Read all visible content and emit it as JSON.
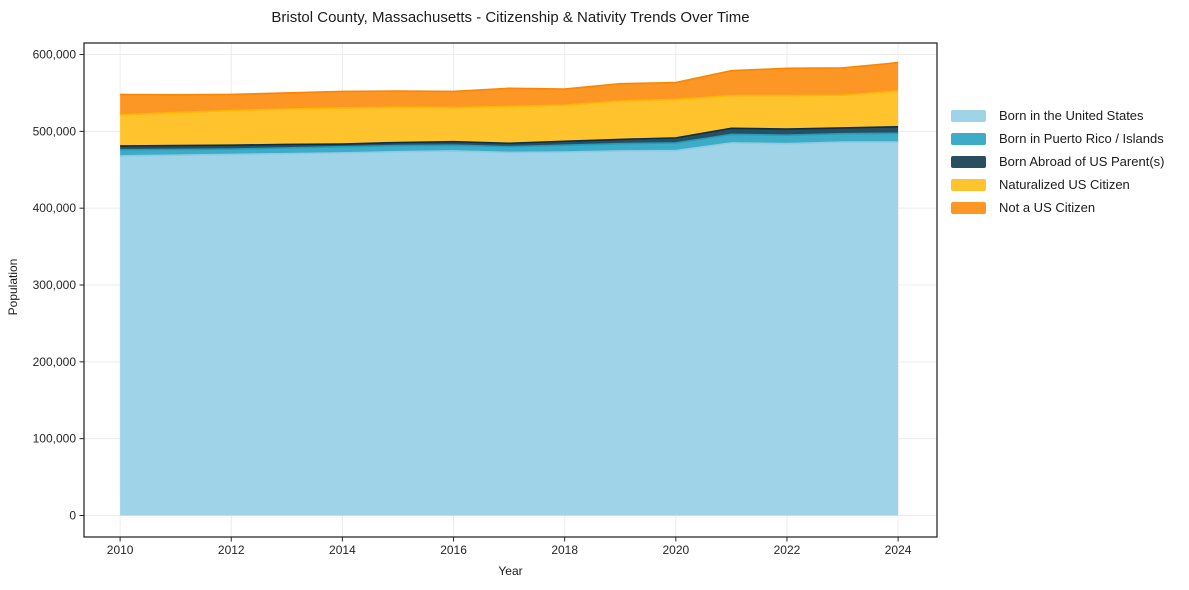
{
  "figure": {
    "title": "Bristol County, Massachusetts - Citizenship & Nativity Trends Over Time",
    "xlabel": "Year",
    "ylabel": "Population"
  },
  "chart_data": {
    "type": "area",
    "stacked": true,
    "title": "Bristol County, Massachusetts - Citizenship & Nativity Trends Over Time",
    "xlabel": "Year",
    "ylabel": "Population",
    "grid": true,
    "legend_position": "right-outside",
    "x": [
      2010,
      2011,
      2012,
      2013,
      2014,
      2015,
      2016,
      2017,
      2018,
      2019,
      2020,
      2021,
      2022,
      2023,
      2024
    ],
    "series": [
      {
        "name": "Born in the United States",
        "fill": "#9fd3e8",
        "edge": "#8ecae6",
        "values": [
          468000,
          469000,
          470000,
          471000,
          472000,
          473500,
          474500,
          472500,
          473000,
          474500,
          475000,
          485000,
          484000,
          486000,
          486000
        ]
      },
      {
        "name": "Born in Puerto Rico / Islands",
        "fill": "#3dacc6",
        "edge": "#219ebc",
        "values": [
          8000,
          7500,
          7000,
          7500,
          8000,
          8000,
          7500,
          7500,
          9000,
          9500,
          10000,
          11000,
          11000,
          11000,
          11500
        ]
      },
      {
        "name": "Born Abroad of US Parent(s)",
        "fill": "#2a4e61",
        "edge": "#07304a",
        "values": [
          5000,
          5000,
          5000,
          4500,
          3500,
          4000,
          4500,
          4500,
          5000,
          5500,
          6500,
          8000,
          8000,
          7500,
          8500
        ]
      },
      {
        "name": "Naturalized US Citizen",
        "fill": "#ffc32e",
        "edge": "#ffb703",
        "values": [
          40500,
          43000,
          45000,
          46000,
          47000,
          46000,
          44500,
          48000,
          47000,
          50000,
          50000,
          42500,
          43500,
          42500,
          46500
        ]
      },
      {
        "name": "Not a US Citizen",
        "fill": "#fc9726",
        "edge": "#fb8500",
        "values": [
          26500,
          23000,
          21000,
          21000,
          21500,
          21000,
          21000,
          23500,
          21000,
          22500,
          22000,
          32500,
          35500,
          35500,
          37000
        ]
      }
    ],
    "xticks": [
      2010,
      2012,
      2014,
      2016,
      2018,
      2020,
      2022,
      2024
    ],
    "yticks": [
      0,
      100000,
      200000,
      300000,
      400000,
      500000,
      600000
    ],
    "ytick_labels": [
      "0",
      "100,000",
      "200,000",
      "300,000",
      "400,000",
      "500,000",
      "600,000"
    ],
    "xlim": [
      2009.35,
      2024.7
    ],
    "ylim": [
      -28000,
      615000
    ],
    "colors": {
      "grid": "#ececec",
      "spine": "#1a1a1a",
      "tick": "#262626",
      "background": "#ffffff"
    }
  }
}
